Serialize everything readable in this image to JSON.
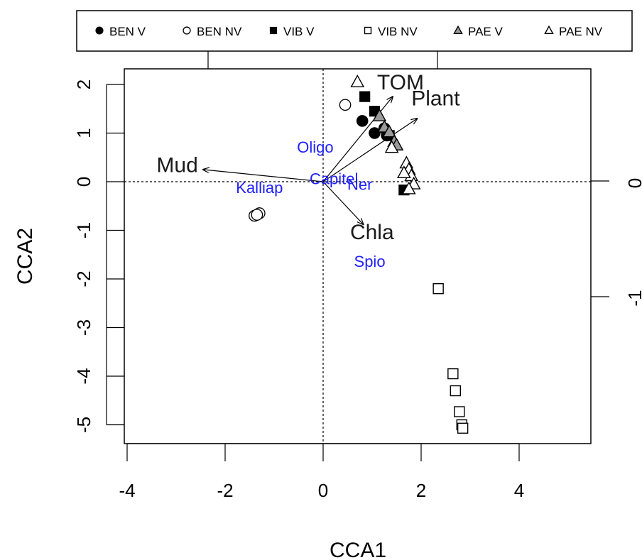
{
  "chart_data": {
    "type": "scatter",
    "title": "",
    "xlabel": "CCA1",
    "ylabel": "CCA2",
    "xlim": [
      -4.1,
      5.5
    ],
    "ylim": [
      -5.4,
      2.3
    ],
    "x_ticks": [
      -4,
      -2,
      0,
      2,
      4
    ],
    "x_tick_labels": [
      "-4",
      "-2",
      "0",
      "2",
      "4"
    ],
    "y_ticks": [
      -5,
      -4,
      -3,
      -2,
      -1,
      0,
      1,
      2
    ],
    "y_tick_labels": [
      "-5",
      "-4",
      "-3",
      "-2",
      "-1",
      "0",
      "1",
      "2"
    ],
    "right_axis_tick_labels": [
      "0",
      "-1"
    ],
    "legend": {
      "position": "top",
      "entries": [
        {
          "label": "BEN V",
          "symbol": "filled-circle"
        },
        {
          "label": "BEN NV",
          "symbol": "open-circle"
        },
        {
          "label": "VIB V",
          "symbol": "filled-square"
        },
        {
          "label": "VIB NV",
          "symbol": "open-square"
        },
        {
          "label": "PAE V",
          "symbol": "grey-triangle"
        },
        {
          "label": "PAE NV",
          "symbol": "open-triangle"
        }
      ]
    },
    "series": [
      {
        "name": "BEN V",
        "symbol": "filled-circle",
        "points": [
          [
            0.8,
            1.25
          ],
          [
            1.05,
            1.0
          ],
          [
            1.3,
            0.95
          ],
          [
            1.25,
            1.1
          ]
        ]
      },
      {
        "name": "BEN NV",
        "symbol": "open-circle",
        "points": [
          [
            0.45,
            1.58
          ],
          [
            -1.3,
            -0.65
          ],
          [
            -1.4,
            -0.7
          ],
          [
            -1.35,
            -0.68
          ]
        ]
      },
      {
        "name": "VIB V",
        "symbol": "filled-square",
        "points": [
          [
            0.85,
            1.75
          ],
          [
            1.05,
            1.45
          ],
          [
            1.35,
            0.95
          ],
          [
            1.65,
            -0.17
          ]
        ]
      },
      {
        "name": "VIB NV",
        "symbol": "open-square",
        "points": [
          [
            2.35,
            -2.2
          ],
          [
            2.65,
            -3.95
          ],
          [
            2.7,
            -4.3
          ],
          [
            2.78,
            -4.73
          ],
          [
            2.83,
            -5.0
          ],
          [
            2.85,
            -5.07
          ]
        ]
      },
      {
        "name": "PAE V",
        "symbol": "grey-triangle",
        "points": [
          [
            1.15,
            1.35
          ],
          [
            1.25,
            1.12
          ],
          [
            1.35,
            1.02
          ],
          [
            1.45,
            0.82
          ],
          [
            1.5,
            0.75
          ]
        ]
      },
      {
        "name": "PAE NV",
        "symbol": "open-triangle",
        "points": [
          [
            0.7,
            2.05
          ],
          [
            1.4,
            0.7
          ],
          [
            1.7,
            0.38
          ],
          [
            1.75,
            0.25
          ],
          [
            1.8,
            0.12
          ],
          [
            1.85,
            -0.05
          ],
          [
            1.75,
            -0.15
          ],
          [
            1.65,
            0.18
          ]
        ]
      }
    ],
    "env_vectors": [
      {
        "name": "TOM",
        "x": 1.42,
        "y": 1.75,
        "label_x": 1.1,
        "label_y": 1.9
      },
      {
        "name": "Plant",
        "x": 1.92,
        "y": 1.3,
        "label_x": 1.8,
        "label_y": 1.57
      },
      {
        "name": "Mud",
        "x": -2.45,
        "y": 0.25,
        "label_x": -3.4,
        "label_y": 0.2
      },
      {
        "name": "Chla",
        "x": 0.82,
        "y": -0.88,
        "label_x": 0.55,
        "label_y": -1.18
      }
    ],
    "species": [
      {
        "name": "Oligo",
        "x": -0.16,
        "y": 0.6
      },
      {
        "name": "Capitel",
        "x": 0.22,
        "y": -0.05
      },
      {
        "name": "Ner",
        "x": 0.75,
        "y": -0.17
      },
      {
        "name": "Kalliap",
        "x": -1.3,
        "y": -0.23
      },
      {
        "name": "Spio",
        "x": 0.95,
        "y": -1.75
      }
    ],
    "reference_lines": {
      "x": 0,
      "y": 0,
      "style": "dotted"
    },
    "grid": false
  }
}
